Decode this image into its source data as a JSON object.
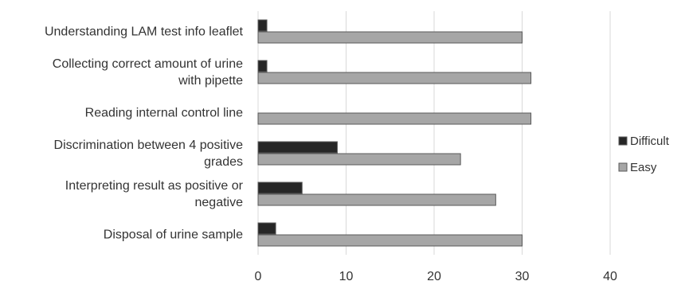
{
  "chart_data": {
    "type": "bar",
    "orientation": "horizontal",
    "categories": [
      [
        "Understanding LAM test info leaflet"
      ],
      [
        "Collecting correct amount of urine",
        "with pipette"
      ],
      [
        "Reading internal control line"
      ],
      [
        "Discrimination between 4 positive",
        "grades"
      ],
      [
        "Interpreting result as positive or",
        "negative"
      ],
      [
        "Disposal of urine sample"
      ]
    ],
    "series": [
      {
        "name": "Difficult",
        "color": "#262626",
        "values": [
          1,
          1,
          0,
          9,
          5,
          2
        ]
      },
      {
        "name": "Easy",
        "color": "#a6a6a6",
        "values": [
          30,
          31,
          31,
          23,
          27,
          30
        ]
      }
    ],
    "xlim": [
      0,
      40
    ],
    "xticks": [
      "0",
      "10",
      "20",
      "30",
      "40"
    ],
    "grid": "vertical",
    "legend": "right",
    "title": "",
    "xlabel": "",
    "ylabel": ""
  }
}
